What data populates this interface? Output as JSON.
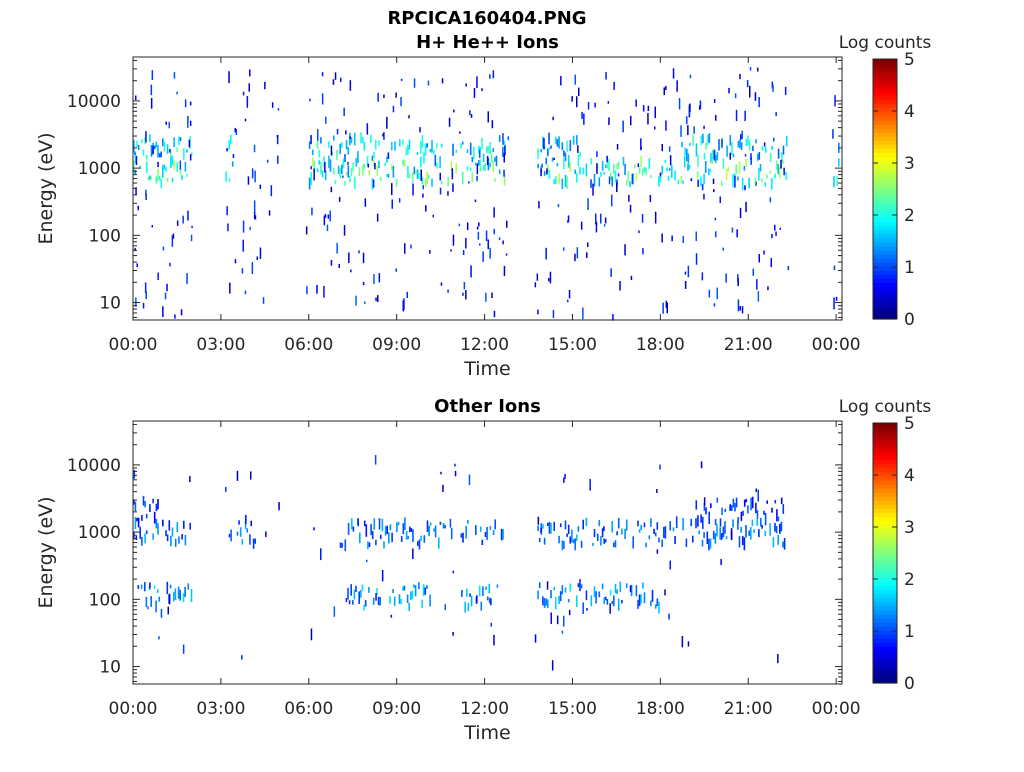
{
  "figure": {
    "title": "RPCICA160404.PNG"
  },
  "chart_data": [
    {
      "type": "heatmap",
      "title": "H+ He++ Ions",
      "xlabel": "Time",
      "ylabel": "Energy (eV)",
      "x_tick_labels": [
        "00:00",
        "03:00",
        "06:00",
        "09:00",
        "12:00",
        "15:00",
        "18:00",
        "21:00",
        "00:00"
      ],
      "x_tick_hours": [
        0,
        3,
        6,
        9,
        12,
        15,
        18,
        21,
        24
      ],
      "xlim_hours": [
        0,
        24.2
      ],
      "y_scale": "log",
      "y_tick_labels": [
        "10",
        "100",
        "1000",
        "10000"
      ],
      "y_tick_values": [
        10,
        100,
        1000,
        10000
      ],
      "ylim": [
        5.5,
        45000
      ],
      "colorbar": {
        "label": "Log counts",
        "min": 0,
        "max": 5,
        "ticks": [
          "0",
          "1",
          "2",
          "3",
          "4",
          "5"
        ],
        "colormap": "jet"
      },
      "data_gaps_hours": [
        [
          2.0,
          3.1
        ],
        [
          5.0,
          5.9
        ],
        [
          12.8,
          13.7
        ],
        [
          22.5,
          23.8
        ]
      ],
      "bands": [
        {
          "energy_eV": 1900,
          "log_counts_peak": 2.3,
          "intervals_hours": [
            [
              0.0,
              2.0
            ],
            [
              3.2,
              3.4
            ],
            [
              6.0,
              12.7
            ],
            [
              13.8,
              15.3
            ],
            [
              18.6,
              22.3
            ],
            [
              23.9,
              24.1
            ]
          ]
        },
        {
          "energy_eV": 850,
          "log_counts_peak": 2.8,
          "intervals_hours": [
            [
              0.0,
              2.0
            ],
            [
              3.1,
              3.4
            ],
            [
              6.0,
              12.7
            ],
            [
              13.8,
              22.3
            ],
            [
              23.9,
              24.1
            ]
          ]
        }
      ],
      "sparse_counts_energy_range_eV": [
        6,
        30000
      ]
    },
    {
      "type": "heatmap",
      "title": "Other Ions",
      "xlabel": "Time",
      "ylabel": "Energy (eV)",
      "x_tick_labels": [
        "00:00",
        "03:00",
        "06:00",
        "09:00",
        "12:00",
        "15:00",
        "18:00",
        "21:00",
        "00:00"
      ],
      "x_tick_hours": [
        0,
        3,
        6,
        9,
        12,
        15,
        18,
        21,
        24
      ],
      "xlim_hours": [
        0,
        24.2
      ],
      "y_scale": "log",
      "y_tick_labels": [
        "10",
        "100",
        "1000",
        "10000"
      ],
      "y_tick_values": [
        10,
        100,
        1000,
        10000
      ],
      "ylim": [
        5.5,
        45000
      ],
      "colorbar": {
        "label": "Log counts",
        "min": 0,
        "max": 5,
        "ticks": [
          "0",
          "1",
          "2",
          "3",
          "4",
          "5"
        ],
        "colormap": "jet"
      },
      "data_gaps_hours": [
        [
          2.0,
          3.1
        ],
        [
          5.0,
          5.9
        ],
        [
          12.8,
          13.7
        ],
        [
          22.5,
          23.8
        ]
      ],
      "bands": [
        {
          "energy_eV": 2000,
          "log_counts_peak": 1.2,
          "intervals_hours": [
            [
              0.0,
              1.0
            ],
            [
              19.2,
              22.3
            ]
          ]
        },
        {
          "energy_eV": 950,
          "log_counts_peak": 1.6,
          "intervals_hours": [
            [
              0.0,
              2.0
            ],
            [
              3.1,
              4.2
            ],
            [
              7.0,
              12.7
            ],
            [
              13.8,
              22.3
            ]
          ]
        },
        {
          "energy_eV": 110,
          "log_counts_peak": 1.8,
          "intervals_hours": [
            [
              0.1,
              2.0
            ],
            [
              7.2,
              10.2
            ],
            [
              11.2,
              12.5
            ],
            [
              13.8,
              18.0
            ]
          ]
        }
      ],
      "sparse_counts_energy_range_eV": [
        10,
        12000
      ]
    }
  ]
}
